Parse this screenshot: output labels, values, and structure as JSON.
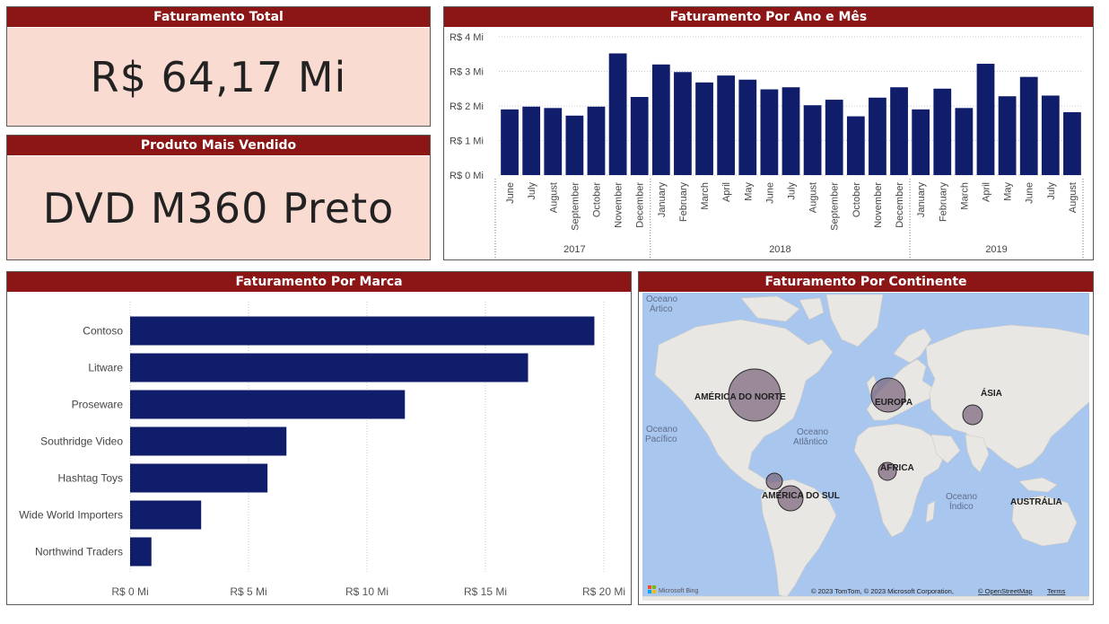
{
  "cards": {
    "total": {
      "title": "Faturamento Total",
      "value": "R$ 64,17 Mi"
    },
    "top_product": {
      "title": "Produto Mais Vendido",
      "value": "DVD M360 Preto"
    }
  },
  "monthly_chart": {
    "title": "Faturamento Por Ano e Mês"
  },
  "brand_chart": {
    "title": "Faturamento Por Marca"
  },
  "map": {
    "title": "Faturamento Por Continente",
    "ocean_labels": [
      "Oceano",
      "Ártico",
      "Oceano",
      "Pacífico",
      "Oceano",
      "Atlântico",
      "Oceano",
      "Índico"
    ],
    "continents": [
      "AMÉRICA DO NORTE",
      "EUROPA",
      "ÁSIA",
      "ÁFRICA",
      "AMÉRICA DO SUL",
      "AUSTRÁLIA"
    ],
    "bing": "Microsoft Bing",
    "copyright": "© 2023 TomTom, © 2023 Microsoft Corporation,",
    "osm_link": "© OpenStreetMap",
    "terms_link": "Terms"
  },
  "chart_data": [
    {
      "type": "bar",
      "title": "Faturamento Por Ano e Mês",
      "categories": [
        "June",
        "July",
        "August",
        "September",
        "October",
        "November",
        "December",
        "January",
        "February",
        "March",
        "April",
        "May",
        "June",
        "July",
        "August",
        "September",
        "October",
        "November",
        "December",
        "January",
        "February",
        "March",
        "April",
        "May",
        "June",
        "July",
        "August"
      ],
      "years": [
        {
          "label": "2017",
          "count": 7
        },
        {
          "label": "2018",
          "count": 12
        },
        {
          "label": "2019",
          "count": 8
        }
      ],
      "values": [
        1.9,
        1.98,
        1.94,
        1.72,
        1.98,
        3.52,
        2.26,
        3.2,
        2.98,
        2.68,
        2.88,
        2.76,
        2.48,
        2.54,
        2.02,
        2.18,
        1.7,
        2.24,
        2.54,
        1.9,
        2.5,
        1.94,
        3.22,
        2.28,
        2.84,
        2.3,
        1.82
      ],
      "ylim": [
        0,
        4
      ],
      "yticks": [
        "R$ 0 Mi",
        "R$ 1 Mi",
        "R$ 2 Mi",
        "R$ 3 Mi",
        "R$ 4 Mi"
      ],
      "color": "#101d6b"
    },
    {
      "type": "bar",
      "orientation": "horizontal",
      "title": "Faturamento Por Marca",
      "categories": [
        "Contoso",
        "Litware",
        "Proseware",
        "Southridge Video",
        "Hashtag Toys",
        "Wide World Importers",
        "Northwind Traders"
      ],
      "values": [
        19.6,
        16.8,
        11.6,
        6.6,
        5.8,
        3.0,
        0.9
      ],
      "xlim": [
        0,
        20
      ],
      "xticks": [
        "R$ 0 Mi",
        "R$ 5 Mi",
        "R$ 10 Mi",
        "R$ 15 Mi",
        "R$ 20 Mi"
      ],
      "color": "#101d6b"
    }
  ]
}
